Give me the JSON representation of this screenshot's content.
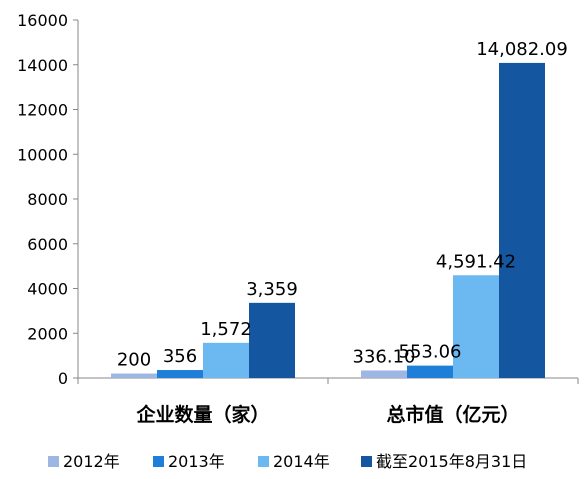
{
  "chart_data": {
    "type": "bar",
    "categories": [
      "企业数量（家）",
      "总市值（亿元）"
    ],
    "series": [
      {
        "name": "2012年",
        "values": [
          200,
          336.1
        ],
        "labels": [
          "200",
          "336.10"
        ],
        "color": "#9DB6E3"
      },
      {
        "name": "2013年",
        "values": [
          356,
          553.06
        ],
        "labels": [
          "356",
          "553.06"
        ],
        "color": "#1F7FD8"
      },
      {
        "name": "2014年",
        "values": [
          1572,
          4591.42
        ],
        "labels": [
          "1,572",
          "4,591.42"
        ],
        "color": "#6BB9F0"
      },
      {
        "name": "截至2015年8月31日",
        "values": [
          3359,
          14082.09
        ],
        "labels": [
          "3,359",
          "14,082.09"
        ],
        "color": "#1556A0"
      }
    ],
    "yticks": [
      "0",
      "2000",
      "4000",
      "6000",
      "8000",
      "10000",
      "12000",
      "14000",
      "16000"
    ],
    "ylim": [
      0,
      16000
    ],
    "grid": false,
    "legend_position": "bottom"
  }
}
